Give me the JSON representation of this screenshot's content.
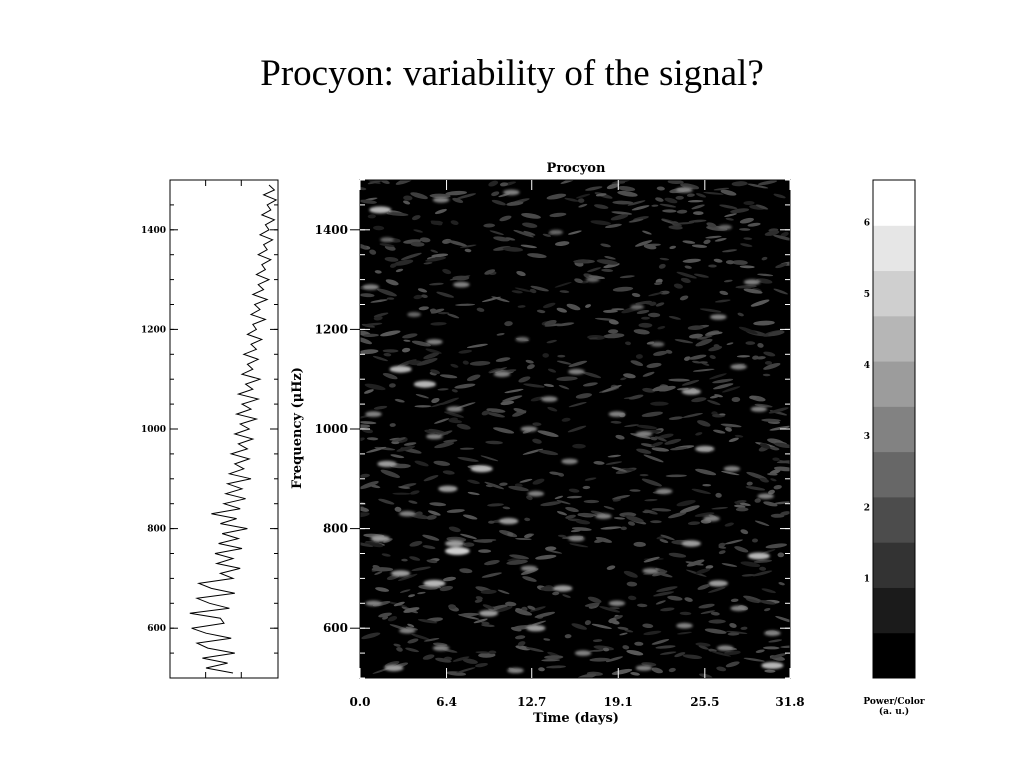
{
  "slide": {
    "title": "Procyon: variability of the signal?"
  },
  "chart_data": [
    {
      "type": "line",
      "panel": "left-power-spectrum",
      "orientation": "vertical",
      "ylim": [
        500,
        1500
      ],
      "yticks": [
        600,
        800,
        1000,
        1200,
        1400
      ],
      "ytick_labels": [
        "600",
        "800",
        "1000",
        "1200",
        "1400"
      ],
      "xlim": [
        0,
        6
      ],
      "series": [
        {
          "y": [
            510,
            520,
            530,
            540,
            550,
            560,
            570,
            580,
            590,
            600,
            610,
            620,
            630,
            640,
            650,
            660,
            670,
            680,
            690,
            700,
            710,
            720,
            730,
            740,
            750,
            760,
            770,
            780,
            790,
            800,
            810,
            820,
            830,
            840,
            850,
            860,
            870,
            880,
            890,
            900,
            910,
            920,
            930,
            940,
            950,
            960,
            970,
            980,
            990,
            1000,
            1010,
            1020,
            1030,
            1040,
            1050,
            1060,
            1070,
            1080,
            1090,
            1100,
            1110,
            1120,
            1130,
            1140,
            1150,
            1160,
            1170,
            1180,
            1190,
            1200,
            1210,
            1220,
            1230,
            1240,
            1250,
            1260,
            1270,
            1280,
            1290,
            1300,
            1310,
            1320,
            1330,
            1340,
            1350,
            1360,
            1370,
            1380,
            1390,
            1400,
            1410,
            1420,
            1430,
            1440,
            1450,
            1460,
            1470,
            1480,
            1490
          ],
          "x": [
            3.5,
            2.0,
            3.2,
            1.8,
            3.6,
            2.1,
            1.5,
            3.4,
            2.0,
            1.2,
            3.0,
            2.8,
            1.1,
            3.3,
            2.2,
            1.5,
            3.6,
            2.3,
            1.6,
            3.5,
            2.8,
            3.9,
            2.6,
            3.5,
            2.5,
            4.0,
            2.7,
            3.8,
            2.9,
            4.3,
            2.8,
            3.7,
            2.3,
            3.9,
            3.0,
            4.2,
            3.1,
            4.0,
            3.2,
            4.5,
            3.3,
            4.1,
            3.6,
            4.4,
            3.4,
            4.3,
            3.8,
            4.6,
            3.6,
            4.4,
            3.9,
            4.8,
            3.7,
            4.5,
            4.0,
            4.9,
            3.8,
            4.6,
            4.2,
            5.0,
            4.0,
            4.6,
            4.3,
            4.9,
            4.1,
            4.8,
            4.5,
            5.1,
            4.3,
            4.8,
            4.6,
            5.3,
            4.5,
            5.0,
            4.7,
            5.4,
            4.6,
            5.2,
            4.9,
            5.5,
            4.8,
            5.3,
            5.1,
            5.6,
            4.9,
            5.4,
            5.2,
            5.7,
            5.0,
            5.5,
            5.3,
            5.8,
            5.1,
            5.6,
            5.4,
            5.9,
            5.2,
            5.8,
            5.5
          ]
        }
      ]
    },
    {
      "type": "heatmap",
      "panel": "main-time-frequency",
      "title": "Procyon",
      "xlabel": "Time (days)",
      "ylabel": "Frequency (μHz)",
      "xlim": [
        0.0,
        31.8
      ],
      "ylim": [
        500,
        1500
      ],
      "xticks": [
        0.0,
        6.4,
        12.7,
        19.1,
        25.5,
        31.8
      ],
      "xtick_labels": [
        "0.0",
        "6.4",
        "12.7",
        "19.1",
        "25.5",
        "31.8"
      ],
      "yticks": [
        600,
        800,
        1000,
        1200,
        1400
      ],
      "ytick_labels": [
        "600",
        "800",
        "1000",
        "1200",
        "1400"
      ],
      "colormap": "grayscale",
      "background_color": "#000000",
      "blobs": [
        {
          "t": 1.5,
          "f": 1440,
          "p": 5
        },
        {
          "t": 6.0,
          "f": 1460,
          "p": 3
        },
        {
          "t": 11.2,
          "f": 1475,
          "p": 3
        },
        {
          "t": 24.0,
          "f": 1480,
          "p": 3
        },
        {
          "t": 2.0,
          "f": 1380,
          "p": 2
        },
        {
          "t": 14.5,
          "f": 1395,
          "p": 2
        },
        {
          "t": 27.0,
          "f": 1405,
          "p": 2
        },
        {
          "t": 0.8,
          "f": 1285,
          "p": 3
        },
        {
          "t": 7.5,
          "f": 1290,
          "p": 3
        },
        {
          "t": 17.2,
          "f": 1300,
          "p": 2
        },
        {
          "t": 29.0,
          "f": 1295,
          "p": 3
        },
        {
          "t": 4.0,
          "f": 1230,
          "p": 2
        },
        {
          "t": 20.5,
          "f": 1245,
          "p": 2
        },
        {
          "t": 26.5,
          "f": 1225,
          "p": 3
        },
        {
          "t": 5.5,
          "f": 1175,
          "p": 3
        },
        {
          "t": 12.0,
          "f": 1180,
          "p": 2
        },
        {
          "t": 22.0,
          "f": 1170,
          "p": 2
        },
        {
          "t": 3.0,
          "f": 1120,
          "p": 5
        },
        {
          "t": 10.5,
          "f": 1110,
          "p": 3
        },
        {
          "t": 16.0,
          "f": 1115,
          "p": 3
        },
        {
          "t": 28.0,
          "f": 1125,
          "p": 3
        },
        {
          "t": 4.8,
          "f": 1090,
          "p": 5
        },
        {
          "t": 14.0,
          "f": 1060,
          "p": 3
        },
        {
          "t": 24.5,
          "f": 1075,
          "p": 4
        },
        {
          "t": 1.0,
          "f": 1030,
          "p": 3
        },
        {
          "t": 7.0,
          "f": 1040,
          "p": 3
        },
        {
          "t": 19.0,
          "f": 1030,
          "p": 3
        },
        {
          "t": 29.5,
          "f": 1040,
          "p": 3
        },
        {
          "t": 5.5,
          "f": 985,
          "p": 3
        },
        {
          "t": 12.5,
          "f": 1000,
          "p": 3
        },
        {
          "t": 21.0,
          "f": 990,
          "p": 3
        },
        {
          "t": 25.5,
          "f": 960,
          "p": 4
        },
        {
          "t": 2.0,
          "f": 930,
          "p": 4
        },
        {
          "t": 9.0,
          "f": 920,
          "p": 5
        },
        {
          "t": 15.5,
          "f": 935,
          "p": 3
        },
        {
          "t": 27.5,
          "f": 920,
          "p": 3
        },
        {
          "t": 6.5,
          "f": 880,
          "p": 4
        },
        {
          "t": 13.0,
          "f": 870,
          "p": 3
        },
        {
          "t": 22.5,
          "f": 875,
          "p": 3
        },
        {
          "t": 30.0,
          "f": 865,
          "p": 3
        },
        {
          "t": 3.5,
          "f": 830,
          "p": 3
        },
        {
          "t": 11.0,
          "f": 815,
          "p": 4
        },
        {
          "t": 18.0,
          "f": 825,
          "p": 3
        },
        {
          "t": 26.0,
          "f": 820,
          "p": 3
        },
        {
          "t": 1.5,
          "f": 780,
          "p": 4
        },
        {
          "t": 7.0,
          "f": 770,
          "p": 4
        },
        {
          "t": 16.0,
          "f": 780,
          "p": 3
        },
        {
          "t": 24.5,
          "f": 770,
          "p": 4
        },
        {
          "t": 7.2,
          "f": 755,
          "p": 6
        },
        {
          "t": 29.5,
          "f": 745,
          "p": 5
        },
        {
          "t": 3.0,
          "f": 710,
          "p": 4
        },
        {
          "t": 12.5,
          "f": 720,
          "p": 3
        },
        {
          "t": 21.5,
          "f": 715,
          "p": 3
        },
        {
          "t": 5.5,
          "f": 690,
          "p": 5
        },
        {
          "t": 15.0,
          "f": 680,
          "p": 4
        },
        {
          "t": 26.5,
          "f": 690,
          "p": 4
        },
        {
          "t": 1.0,
          "f": 650,
          "p": 3
        },
        {
          "t": 9.5,
          "f": 630,
          "p": 4
        },
        {
          "t": 19.0,
          "f": 650,
          "p": 3
        },
        {
          "t": 28.0,
          "f": 640,
          "p": 3
        },
        {
          "t": 3.5,
          "f": 595,
          "p": 3
        },
        {
          "t": 13.0,
          "f": 600,
          "p": 4
        },
        {
          "t": 24.0,
          "f": 605,
          "p": 3
        },
        {
          "t": 30.5,
          "f": 590,
          "p": 3
        },
        {
          "t": 6.0,
          "f": 560,
          "p": 3
        },
        {
          "t": 16.5,
          "f": 550,
          "p": 3
        },
        {
          "t": 27.0,
          "f": 560,
          "p": 3
        },
        {
          "t": 2.5,
          "f": 520,
          "p": 4
        },
        {
          "t": 11.5,
          "f": 515,
          "p": 3
        },
        {
          "t": 21.0,
          "f": 520,
          "p": 3
        },
        {
          "t": 30.5,
          "f": 525,
          "p": 5
        }
      ]
    },
    {
      "type": "colorbar",
      "panel": "power-colorbar",
      "label_line1": "Power/Color",
      "label_line2": "(a. u.)",
      "range": [
        -0.4,
        6.6
      ],
      "ticks": [
        1,
        2,
        3,
        4,
        5,
        6
      ],
      "tick_labels": [
        "1",
        "2",
        "3",
        "4",
        "5",
        "6"
      ],
      "levels": [
        "#000000",
        "#1b1b1b",
        "#333333",
        "#4c4c4c",
        "#676767",
        "#828282",
        "#9c9c9c",
        "#b6b6b6",
        "#cfcfcf",
        "#e6e6e6",
        "#ffffff"
      ]
    }
  ]
}
